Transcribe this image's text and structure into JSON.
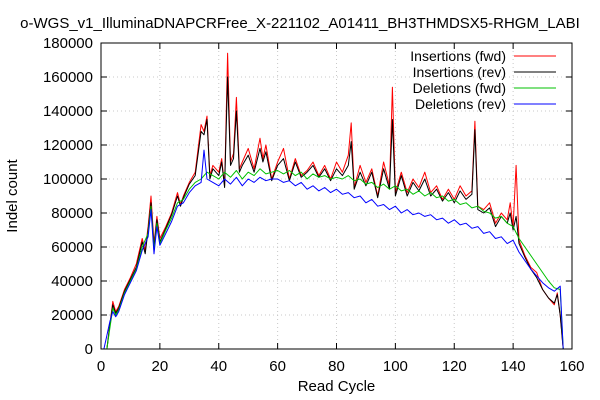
{
  "chart_data": {
    "type": "line",
    "title": "o-WGS_v1_IlluminaDNAPCRFree_X-221102_A01411_BH3THMDSX5-RHGM_LABI",
    "xlabel": "Read Cycle",
    "ylabel": "Indel count",
    "xlim": [
      0,
      160
    ],
    "ylim": [
      0,
      180000
    ],
    "xticks": [
      0,
      20,
      40,
      60,
      80,
      100,
      120,
      140,
      160
    ],
    "yticks": [
      0,
      20000,
      40000,
      60000,
      80000,
      100000,
      120000,
      140000,
      160000,
      180000
    ],
    "grid": true,
    "legend_position": "top-right",
    "series": [
      {
        "name": "Insertions (fwd)",
        "color": "#ff0000",
        "x": [
          1,
          2,
          3,
          4,
          5,
          6,
          8,
          10,
          12,
          14,
          15,
          16,
          17,
          18,
          19,
          20,
          22,
          24,
          26,
          27,
          28,
          30,
          32,
          34,
          35,
          36,
          37,
          38,
          40,
          41,
          42,
          43,
          44,
          45,
          46,
          47,
          48,
          50,
          52,
          54,
          55,
          56,
          58,
          60,
          62,
          64,
          66,
          68,
          70,
          72,
          74,
          76,
          78,
          80,
          82,
          84,
          85,
          86,
          88,
          90,
          92,
          94,
          96,
          98,
          99,
          100,
          102,
          104,
          106,
          108,
          110,
          112,
          114,
          116,
          118,
          120,
          122,
          124,
          126,
          127,
          128,
          130,
          132,
          134,
          136,
          138,
          139,
          140,
          141,
          142,
          144,
          146,
          148,
          150,
          152,
          154,
          155,
          156,
          157
        ],
        "y": [
          0,
          0,
          14000,
          28000,
          22000,
          25000,
          35000,
          42000,
          50000,
          65000,
          58000,
          72000,
          90000,
          62000,
          78000,
          65000,
          72000,
          80000,
          92000,
          85000,
          90000,
          98000,
          104000,
          132000,
          128000,
          137000,
          102000,
          108000,
          104000,
          112000,
          96000,
          174000,
          110000,
          115000,
          148000,
          106000,
          110000,
          118000,
          106000,
          124000,
          112000,
          120000,
          100000,
          110000,
          118000,
          100000,
          112000,
          102000,
          105000,
          110000,
          102000,
          108000,
          100000,
          110000,
          104000,
          114000,
          133000,
          95000,
          108000,
          98000,
          106000,
          90000,
          110000,
          96000,
          154000,
          92000,
          104000,
          92000,
          100000,
          95000,
          104000,
          92000,
          96000,
          88000,
          94000,
          88000,
          96000,
          90000,
          93000,
          134000,
          84000,
          82000,
          86000,
          74000,
          80000,
          76000,
          86000,
          72000,
          108000,
          64000,
          55000,
          48000,
          45000,
          35000,
          30000,
          26000,
          33000,
          20000,
          0
        ]
      },
      {
        "name": "Insertions (rev)",
        "color": "#000000",
        "x": [
          1,
          2,
          3,
          4,
          5,
          6,
          8,
          10,
          12,
          14,
          15,
          16,
          17,
          18,
          19,
          20,
          22,
          24,
          26,
          27,
          28,
          30,
          32,
          34,
          35,
          36,
          37,
          38,
          40,
          41,
          42,
          43,
          44,
          45,
          46,
          47,
          48,
          50,
          52,
          54,
          55,
          56,
          58,
          60,
          62,
          64,
          66,
          68,
          70,
          72,
          74,
          76,
          78,
          80,
          82,
          84,
          85,
          86,
          88,
          90,
          92,
          94,
          96,
          98,
          99,
          100,
          102,
          104,
          106,
          108,
          110,
          112,
          114,
          116,
          118,
          120,
          122,
          124,
          126,
          127,
          128,
          130,
          132,
          134,
          136,
          138,
          139,
          140,
          141,
          142,
          144,
          146,
          148,
          150,
          152,
          154,
          155,
          156,
          157
        ],
        "y": [
          0,
          0,
          14000,
          26000,
          21000,
          24000,
          34000,
          41000,
          48000,
          63000,
          56000,
          70000,
          86000,
          60000,
          76000,
          63000,
          71000,
          79000,
          90000,
          84000,
          89000,
          97000,
          102000,
          128000,
          126000,
          135000,
          100000,
          106000,
          102000,
          110000,
          95000,
          160000,
          108000,
          112000,
          140000,
          104000,
          108000,
          114000,
          104000,
          118000,
          110000,
          116000,
          99000,
          108000,
          112000,
          99000,
          110000,
          101000,
          104000,
          108000,
          101000,
          106000,
          99000,
          106000,
          102000,
          108000,
          122000,
          94000,
          104000,
          96000,
          104000,
          89000,
          106000,
          94000,
          135000,
          90000,
          102000,
          90000,
          98000,
          93000,
          100000,
          90000,
          94000,
          87000,
          92000,
          86000,
          93000,
          88000,
          91000,
          129000,
          82000,
          80000,
          83000,
          72000,
          78000,
          74000,
          80000,
          70000,
          78000,
          62000,
          54000,
          47000,
          42000,
          35000,
          30000,
          27000,
          32000,
          20000,
          0
        ]
      },
      {
        "name": "Deletions (fwd)",
        "color": "#00c000",
        "x": [
          1,
          2,
          3,
          4,
          5,
          6,
          8,
          10,
          12,
          14,
          16,
          17,
          18,
          19,
          20,
          22,
          24,
          26,
          28,
          30,
          32,
          34,
          36,
          38,
          40,
          42,
          44,
          46,
          48,
          50,
          52,
          54,
          56,
          58,
          60,
          62,
          64,
          66,
          68,
          70,
          72,
          74,
          76,
          78,
          80,
          82,
          84,
          86,
          88,
          90,
          92,
          94,
          96,
          98,
          100,
          102,
          104,
          106,
          108,
          110,
          112,
          114,
          116,
          118,
          120,
          122,
          124,
          126,
          128,
          130,
          132,
          134,
          136,
          138,
          140,
          142,
          144,
          146,
          148,
          150,
          152,
          154,
          156,
          157
        ],
        "y": [
          0,
          0,
          12000,
          24000,
          20000,
          23000,
          33000,
          40000,
          47000,
          60000,
          68000,
          84000,
          58000,
          74000,
          62000,
          70000,
          77000,
          86000,
          88000,
          94000,
          98000,
          100000,
          104000,
          102000,
          100000,
          104000,
          101000,
          105000,
          100000,
          104000,
          102000,
          106000,
          103000,
          104000,
          105000,
          103000,
          105000,
          102000,
          104000,
          100000,
          103000,
          101000,
          102000,
          100000,
          101000,
          100000,
          102000,
          99000,
          100000,
          97000,
          98000,
          95000,
          97000,
          94000,
          96000,
          93000,
          94000,
          91000,
          93000,
          90000,
          92000,
          89000,
          90000,
          87000,
          88000,
          85000,
          86000,
          83000,
          84000,
          81000,
          80000,
          77000,
          78000,
          74000,
          72000,
          65000,
          60000,
          55000,
          50000,
          45000,
          40000,
          36000,
          35000,
          0
        ]
      },
      {
        "name": "Deletions (rev)",
        "color": "#0000ff",
        "x": [
          1,
          2,
          3,
          4,
          5,
          6,
          8,
          10,
          12,
          14,
          16,
          17,
          18,
          19,
          20,
          22,
          24,
          26,
          28,
          30,
          32,
          34,
          35,
          36,
          38,
          40,
          42,
          44,
          46,
          48,
          50,
          52,
          54,
          56,
          58,
          60,
          62,
          64,
          66,
          68,
          70,
          72,
          74,
          76,
          78,
          80,
          82,
          84,
          86,
          88,
          90,
          92,
          94,
          96,
          98,
          100,
          102,
          104,
          106,
          108,
          110,
          112,
          114,
          116,
          118,
          120,
          122,
          124,
          126,
          128,
          130,
          132,
          134,
          136,
          138,
          140,
          142,
          144,
          146,
          148,
          150,
          152,
          154,
          156,
          157
        ],
        "y": [
          0,
          8000,
          16000,
          22000,
          19000,
          22000,
          32000,
          39000,
          46000,
          58000,
          66000,
          82000,
          56000,
          72000,
          61000,
          68000,
          75000,
          84000,
          86000,
          92000,
          96000,
          98000,
          117000,
          100000,
          98000,
          96000,
          100000,
          97000,
          101000,
          96000,
          100000,
          98000,
          101000,
          99000,
          100000,
          100000,
          98000,
          99000,
          96000,
          98000,
          94000,
          96000,
          93000,
          95000,
          92000,
          94000,
          91000,
          92000,
          89000,
          90000,
          86000,
          88000,
          84000,
          85000,
          82000,
          84000,
          80000,
          82000,
          79000,
          80000,
          78000,
          79000,
          76000,
          77000,
          74000,
          76000,
          73000,
          74000,
          71000,
          72000,
          68000,
          69000,
          65000,
          66000,
          62000,
          64000,
          57000,
          52000,
          47000,
          43000,
          39000,
          36000,
          34000,
          37000,
          0
        ]
      }
    ]
  }
}
